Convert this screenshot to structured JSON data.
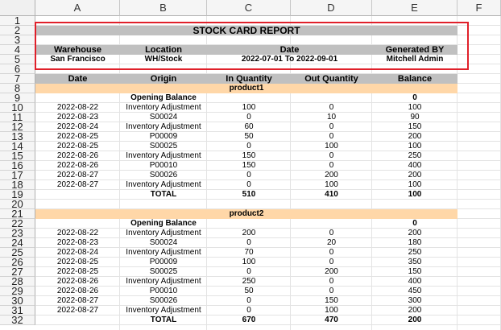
{
  "columns": [
    "A",
    "B",
    "C",
    "D",
    "E",
    "F"
  ],
  "row_numbers": [
    "1",
    "2",
    "3",
    "4",
    "5",
    "6",
    "7",
    "8",
    "9",
    "10",
    "11",
    "12",
    "13",
    "14",
    "15",
    "16",
    "17",
    "18",
    "19",
    "20",
    "21",
    "22",
    "23",
    "24",
    "25",
    "26",
    "27",
    "28",
    "29",
    "30",
    "31",
    "32"
  ],
  "report": {
    "title": "STOCK CARD REPORT",
    "header_labels": [
      "Warehouse",
      "Location",
      "Date",
      "Generated BY"
    ],
    "header_values": [
      "San Francisco",
      "WH/Stock",
      "2022-07-01 To 2022-09-01",
      "Mitchell Admin"
    ]
  },
  "table": {
    "headers": [
      "Date",
      "Origin",
      "In Quantity",
      "Out Quantity",
      "Balance"
    ],
    "products": [
      {
        "name": "product1",
        "opening_label": "Opening Balance",
        "opening_value": "0",
        "rows": [
          [
            "2022-08-22",
            "Inventory Adjustment",
            "100",
            "0",
            "100"
          ],
          [
            "2022-08-23",
            "S00024",
            "0",
            "10",
            "90"
          ],
          [
            "2022-08-24",
            "Inventory Adjustment",
            "60",
            "0",
            "150"
          ],
          [
            "2022-08-25",
            "P00009",
            "50",
            "0",
            "200"
          ],
          [
            "2022-08-25",
            "S00025",
            "0",
            "100",
            "100"
          ],
          [
            "2022-08-26",
            "Inventory Adjustment",
            "150",
            "0",
            "250"
          ],
          [
            "2022-08-26",
            "P00010",
            "150",
            "0",
            "400"
          ],
          [
            "2022-08-27",
            "S00026",
            "0",
            "200",
            "200"
          ],
          [
            "2022-08-27",
            "Inventory Adjustment",
            "0",
            "100",
            "100"
          ]
        ],
        "total_label": "TOTAL",
        "totals": [
          "510",
          "410",
          "100"
        ]
      },
      {
        "name": "product2",
        "opening_label": "Opening Balance",
        "opening_value": "0",
        "rows": [
          [
            "2022-08-22",
            "Inventory Adjustment",
            "200",
            "0",
            "200"
          ],
          [
            "2022-08-23",
            "S00024",
            "0",
            "20",
            "180"
          ],
          [
            "2022-08-24",
            "Inventory Adjustment",
            "70",
            "0",
            "250"
          ],
          [
            "2022-08-25",
            "P00009",
            "100",
            "0",
            "350"
          ],
          [
            "2022-08-25",
            "S00025",
            "0",
            "200",
            "150"
          ],
          [
            "2022-08-26",
            "Inventory Adjustment",
            "250",
            "0",
            "400"
          ],
          [
            "2022-08-26",
            "P00010",
            "50",
            "0",
            "450"
          ],
          [
            "2022-08-27",
            "S00026",
            "0",
            "150",
            "300"
          ],
          [
            "2022-08-27",
            "Inventory Adjustment",
            "0",
            "100",
            "200"
          ]
        ],
        "total_label": "TOTAL",
        "totals": [
          "670",
          "470",
          "200"
        ]
      }
    ]
  },
  "colors": {
    "header_gray": "#c0c0c0",
    "product_band": "#ffd7a8",
    "selection_border": "#e0202a"
  }
}
